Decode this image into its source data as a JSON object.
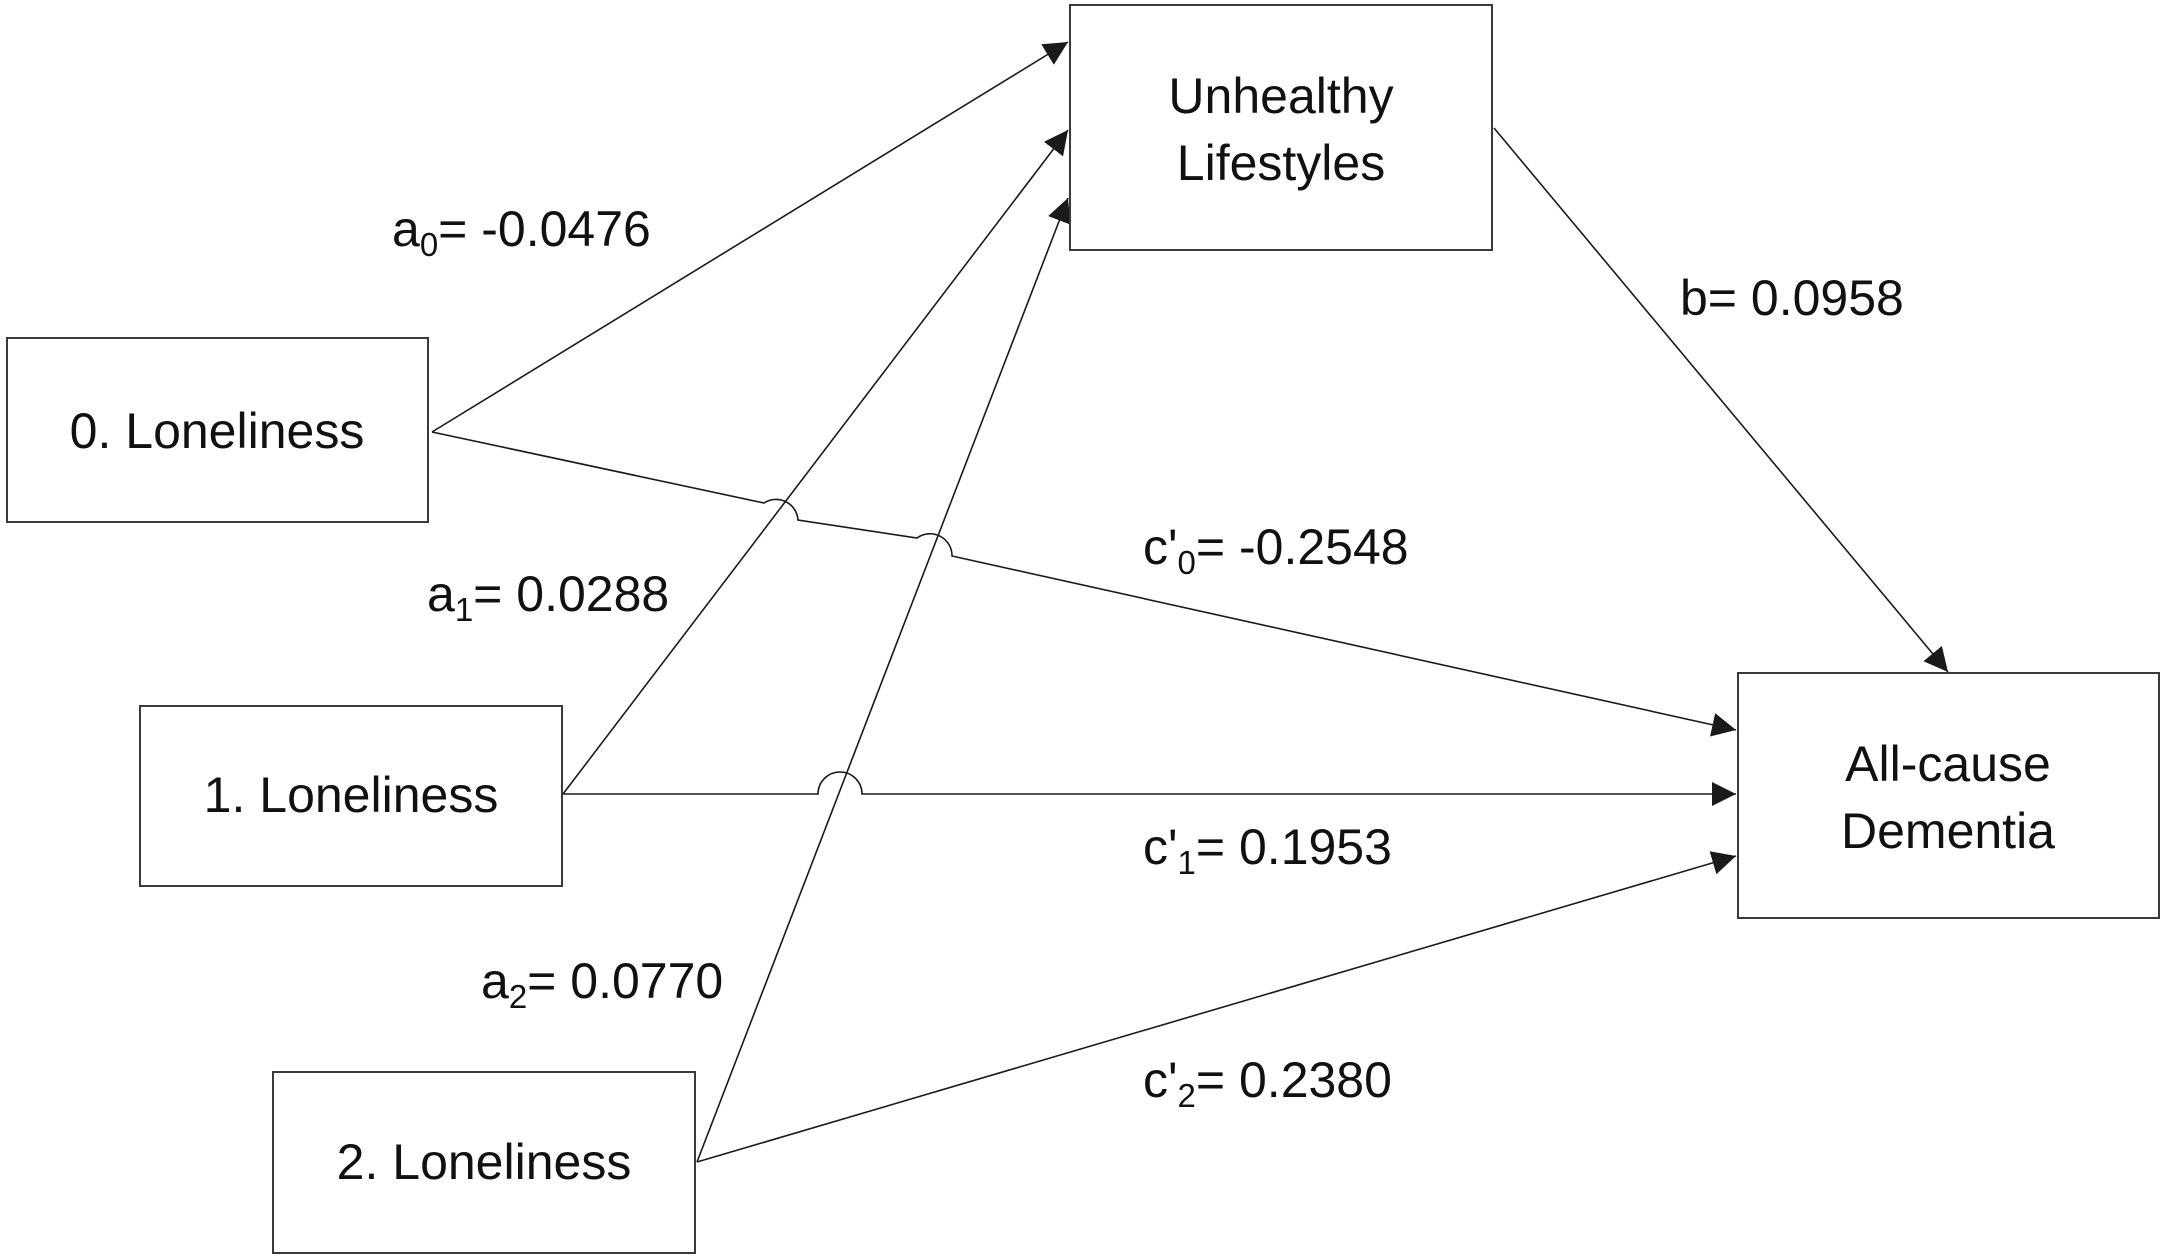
{
  "nodes": {
    "loneliness0": {
      "label": "0. Loneliness"
    },
    "loneliness1": {
      "label": "1. Loneliness"
    },
    "loneliness2": {
      "label": "2. Loneliness"
    },
    "lifestyles": {
      "line1": "Unhealthy",
      "line2": "Lifestyles"
    },
    "dementia": {
      "line1": "All-cause",
      "line2": "Dementia"
    }
  },
  "edges": {
    "a0": {
      "sym": "a",
      "sub": "0",
      "value": "= -0.0476"
    },
    "a1": {
      "sym": "a",
      "sub": "1",
      "value": "= 0.0288"
    },
    "a2": {
      "sym": "a",
      "sub": "2",
      "value": "= 0.0770"
    },
    "b": {
      "text": "b= 0.0958"
    },
    "c0": {
      "sym": "c'",
      "sub": "0",
      "value": "= -0.2548"
    },
    "c1": {
      "sym": "c'",
      "sub": "1",
      "value": "= 0.1953"
    },
    "c2": {
      "sym": "c'",
      "sub": "2",
      "value": "= 0.2380"
    }
  }
}
